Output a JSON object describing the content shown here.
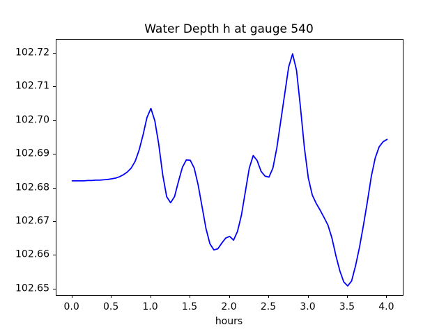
{
  "chart_data": {
    "type": "line",
    "title": "Water Depth h at gauge 540",
    "xlabel": "hours",
    "ylabel": "",
    "xlim": [
      -0.2,
      4.2
    ],
    "ylim": [
      102.6483,
      102.7241
    ],
    "xticks": [
      0.0,
      0.5,
      1.0,
      1.5,
      2.0,
      2.5,
      3.0,
      3.5,
      4.0
    ],
    "xtick_labels": [
      "0.0",
      "0.5",
      "1.0",
      "1.5",
      "2.0",
      "2.5",
      "3.0",
      "3.5",
      "4.0"
    ],
    "yticks": [
      102.65,
      102.66,
      102.67,
      102.68,
      102.69,
      102.7,
      102.71,
      102.72
    ],
    "ytick_labels": [
      "102.65",
      "102.66",
      "102.67",
      "102.68",
      "102.69",
      "102.70",
      "102.71",
      "102.72"
    ],
    "grid": false,
    "legend": null,
    "background_color": "#ffffff",
    "series": [
      {
        "name": "water-depth-h",
        "color": "#0000ff",
        "line_width": 1.8,
        "x": [
          0.0,
          0.05,
          0.1,
          0.15,
          0.2,
          0.25,
          0.3,
          0.35,
          0.4,
          0.45,
          0.5,
          0.55,
          0.6,
          0.65,
          0.7,
          0.75,
          0.8,
          0.85,
          0.9,
          0.95,
          1.0,
          1.05,
          1.1,
          1.15,
          1.2,
          1.25,
          1.3,
          1.35,
          1.4,
          1.45,
          1.5,
          1.55,
          1.6,
          1.65,
          1.7,
          1.75,
          1.8,
          1.85,
          1.9,
          1.95,
          2.0,
          2.05,
          2.1,
          2.15,
          2.2,
          2.25,
          2.3,
          2.35,
          2.4,
          2.45,
          2.5,
          2.55,
          2.6,
          2.65,
          2.7,
          2.75,
          2.8,
          2.85,
          2.9,
          2.95,
          3.0,
          3.05,
          3.1,
          3.15,
          3.2,
          3.25,
          3.3,
          3.35,
          3.4,
          3.45,
          3.5,
          3.55,
          3.6,
          3.65,
          3.7,
          3.75,
          3.8,
          3.85,
          3.9,
          3.95,
          4.0
        ],
        "y": [
          102.6822,
          102.6822,
          102.6822,
          102.6822,
          102.6823,
          102.6823,
          102.6824,
          102.6824,
          102.6825,
          102.6826,
          102.6828,
          102.683,
          102.6834,
          102.684,
          102.6848,
          102.686,
          102.688,
          102.6913,
          102.6958,
          102.701,
          102.7037,
          102.7,
          102.693,
          102.684,
          102.6775,
          102.6757,
          102.6775,
          102.682,
          102.6862,
          102.6884,
          102.6883,
          102.686,
          102.681,
          102.6745,
          102.668,
          102.6635,
          102.6617,
          102.662,
          102.6637,
          102.6652,
          102.6657,
          102.6646,
          102.6672,
          102.672,
          102.679,
          102.686,
          102.6897,
          102.6882,
          102.685,
          102.6836,
          102.6833,
          102.686,
          102.692,
          102.7,
          102.708,
          102.716,
          102.7199,
          102.715,
          102.704,
          102.692,
          102.683,
          102.678,
          102.6755,
          102.6735,
          102.6713,
          102.669,
          102.6652,
          102.66,
          102.6555,
          102.6522,
          102.651,
          102.6525,
          102.657,
          102.6625,
          102.669,
          102.676,
          102.6835,
          102.689,
          102.6923,
          102.6938,
          102.6945
        ]
      }
    ]
  }
}
